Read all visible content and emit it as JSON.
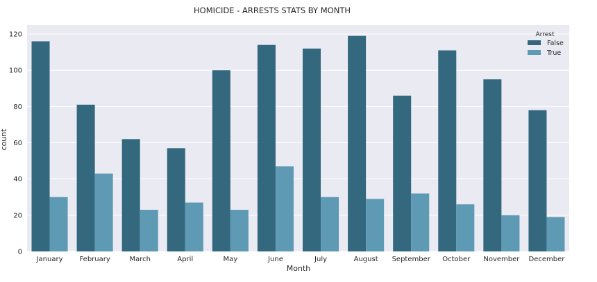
{
  "chart_data": {
    "type": "bar",
    "title": "HOMICIDE - ARRESTS STATS BY MONTH",
    "xlabel": "Month",
    "ylabel": "count",
    "categories": [
      "January",
      "February",
      "March",
      "April",
      "May",
      "June",
      "July",
      "August",
      "September",
      "October",
      "November",
      "December"
    ],
    "series": [
      {
        "name": "False",
        "color": "#33687e",
        "values": [
          116,
          81,
          62,
          57,
          100,
          114,
          112,
          119,
          86,
          111,
          95,
          78
        ]
      },
      {
        "name": "True",
        "color": "#5f9ab5",
        "values": [
          30,
          43,
          23,
          27,
          23,
          47,
          30,
          29,
          32,
          26,
          20,
          19
        ]
      }
    ],
    "ylim": [
      0,
      125
    ],
    "yticks": [
      0,
      20,
      40,
      60,
      80,
      100,
      120
    ],
    "grid": true,
    "legend": {
      "title": "Arrest",
      "placement": "top-right"
    },
    "background": "#eaeaf2",
    "grid_color": "#ffffff"
  }
}
